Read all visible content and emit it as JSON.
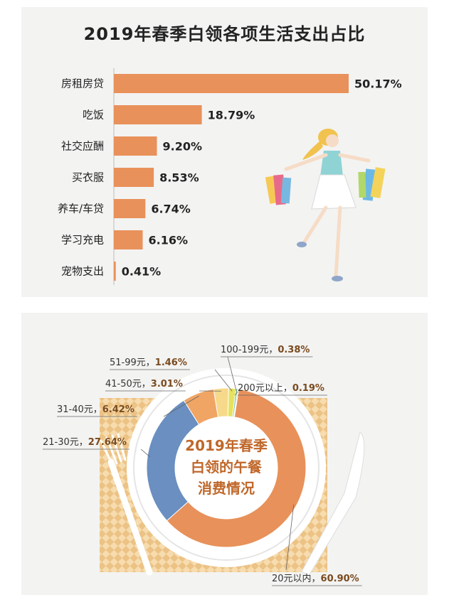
{
  "chart_data": [
    {
      "type": "bar",
      "title": "2019年春季白领各项生活支出占比",
      "categories": [
        "房租房贷",
        "吃饭",
        "社交应酬",
        "买衣服",
        "养车/车贷",
        "学习充电",
        "宠物支出"
      ],
      "values": [
        50.17,
        18.79,
        9.2,
        8.53,
        6.74,
        6.16,
        0.41
      ],
      "labels": [
        "50.17%",
        "18.79%",
        "9.20%",
        "8.53%",
        "6.74%",
        "6.16%",
        "0.41%"
      ],
      "orientation": "horizontal",
      "bar_color": "#e8915a"
    },
    {
      "type": "pie",
      "title": "2019年春季白领的午餐消费情况",
      "title_lines": [
        "2019年春季",
        "白领的午餐",
        "消费情况"
      ],
      "slices": [
        {
          "label": "20元以内，",
          "pct_text": "60.90%",
          "value": 60.9,
          "color": "#e8915a"
        },
        {
          "label": "21-30元，",
          "pct_text": "27.64%",
          "value": 27.64,
          "color": "#6a8fc0"
        },
        {
          "label": "31-40元，",
          "pct_text": "6.42%",
          "value": 6.42,
          "color": "#f0a565"
        },
        {
          "label": "41-50元，",
          "pct_text": "3.01%",
          "value": 3.01,
          "color": "#f6d98a"
        },
        {
          "label": "51-99元，",
          "pct_text": "1.46%",
          "value": 1.46,
          "color": "#e7e25e"
        },
        {
          "label": "100-199元，",
          "pct_text": "0.38%",
          "value": 0.38,
          "color": "#7fc3a6"
        },
        {
          "label": "200元以上，",
          "pct_text": "0.19%",
          "value": 0.19,
          "color": "#a9cf6a"
        }
      ]
    }
  ]
}
